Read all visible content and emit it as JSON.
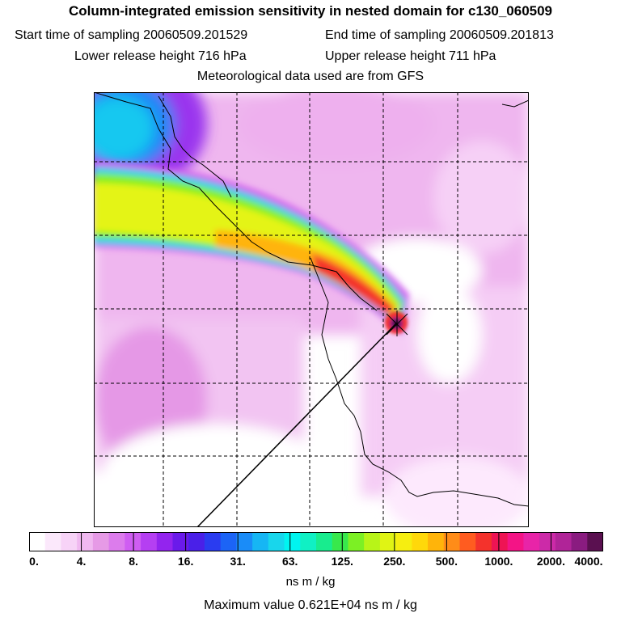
{
  "header": {
    "title": "Column-integrated emission sensitivity in nested domain for c130_060509",
    "start_label": "Start time of sampling 20060509.201529",
    "end_label": "End time of sampling 20060509.201813",
    "lower_label": "Lower release height  716 hPa",
    "upper_label": "Upper release height  711 hPa",
    "met_label": "Meteorological data used are from GFS"
  },
  "colorbar": {
    "ticks": [
      "0.",
      "4.",
      "8.",
      "16.",
      "31.",
      "63.",
      "125.",
      "250.",
      "500.",
      "1000.",
      "2000.",
      "4000."
    ],
    "colors": [
      "#ffffff",
      "#fbe8fb",
      "#f7d3f7",
      "#f0b8f0",
      "#e69ae6",
      "#dc7cec",
      "#cf5df2",
      "#b53ff2",
      "#9324ee",
      "#6a1aea",
      "#4a20e8",
      "#2a3cf0",
      "#1c64f6",
      "#1a8cf8",
      "#16b6f4",
      "#18d6ec",
      "#00f4f0",
      "#10f0c4",
      "#18ec8e",
      "#38e84c",
      "#7cf024",
      "#b8f418",
      "#e0f414",
      "#f6ee10",
      "#ffd80a",
      "#ffb40a",
      "#ff8c18",
      "#ff5c20",
      "#f4322c",
      "#ee1454",
      "#f41486",
      "#e824a8",
      "#cc2aa8",
      "#b02498",
      "#8a1c80",
      "#5a1050"
    ],
    "unit": "ns m / kg"
  },
  "max_value_label": "Maximum value  0.621E+04 ns m / kg"
}
